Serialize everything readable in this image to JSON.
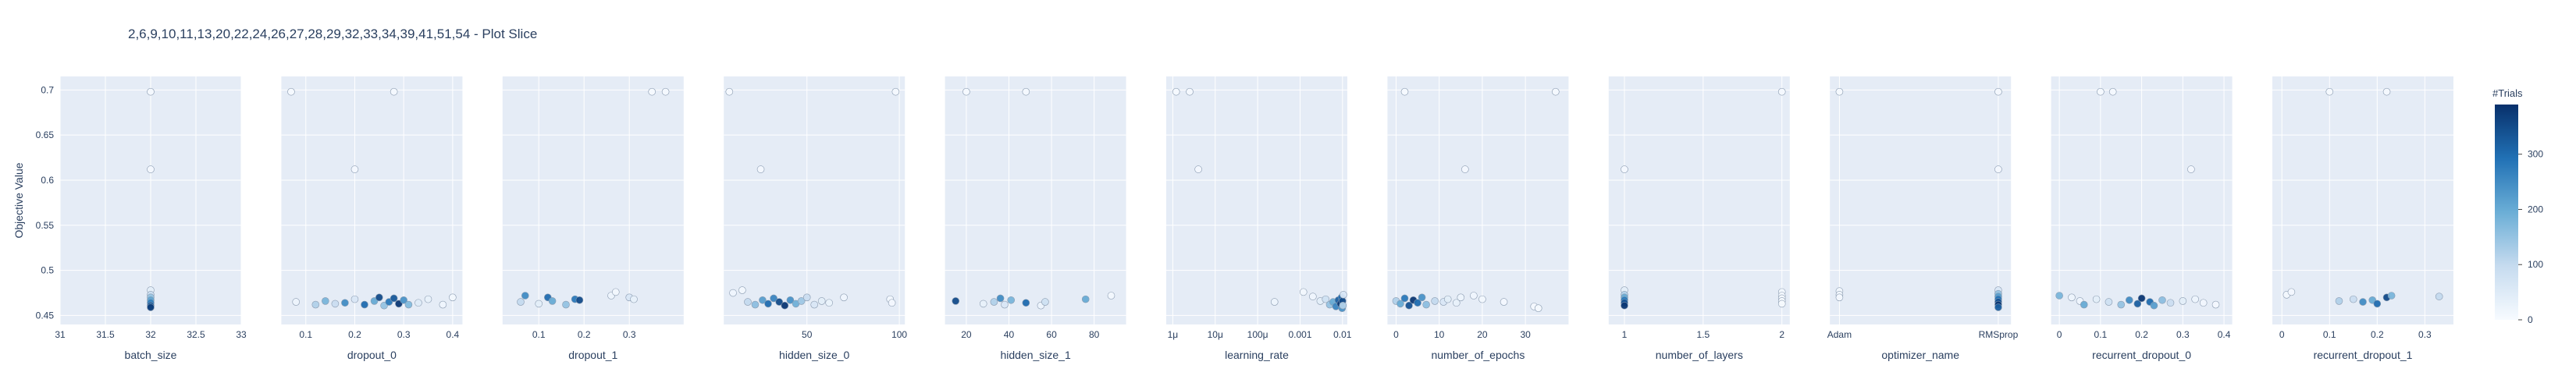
{
  "chart_data": {
    "type": "scatter",
    "title": "2,6,9,10,11,13,20,22,24,26,27,28,29,32,33,34,39,41,51,54 - Plot Slice",
    "ylabel": "Objective Value",
    "ylim": [
      0.44,
      0.715
    ],
    "yticks": [
      0.45,
      0.5,
      0.55,
      0.6,
      0.65,
      0.7
    ],
    "yticklabels": [
      "0.45",
      "0.5",
      "0.55",
      "0.6",
      "0.65",
      "0.7"
    ],
    "colorbar": {
      "title": "#Trials",
      "range": [
        0,
        390
      ],
      "ticks": [
        0,
        100,
        200,
        300
      ],
      "ticklabels": [
        "0",
        "100",
        "200",
        "300"
      ],
      "colors": [
        "#f7fbff",
        "#c6dbef",
        "#6baed6",
        "#2171b5",
        "#08306b"
      ]
    },
    "panels": [
      {
        "xlabel": "batch_size",
        "scale": "linear",
        "xlim": [
          31,
          33
        ],
        "ticks": [
          31,
          31.5,
          32,
          32.5,
          33
        ],
        "ticklabels": [
          "31",
          "31.5",
          "32",
          "32.5",
          "33"
        ],
        "points": [
          [
            32,
            0.698,
            5
          ],
          [
            32,
            0.612,
            8
          ],
          [
            32,
            0.478,
            40
          ],
          [
            32,
            0.473,
            90
          ],
          [
            32,
            0.47,
            150
          ],
          [
            32,
            0.467,
            210
          ],
          [
            32,
            0.464,
            270
          ],
          [
            32,
            0.461,
            330
          ],
          [
            32,
            0.459,
            370
          ]
        ]
      },
      {
        "xlabel": "dropout_0",
        "scale": "linear",
        "xlim": [
          0.05,
          0.42
        ],
        "ticks": [
          0.1,
          0.2,
          0.3,
          0.4
        ],
        "ticklabels": [
          "0.1",
          "0.2",
          "0.3",
          "0.4"
        ],
        "points": [
          [
            0.07,
            0.698,
            3
          ],
          [
            0.28,
            0.698,
            5
          ],
          [
            0.2,
            0.612,
            8
          ],
          [
            0.08,
            0.465,
            20
          ],
          [
            0.12,
            0.462,
            120
          ],
          [
            0.14,
            0.466,
            180
          ],
          [
            0.16,
            0.463,
            90
          ],
          [
            0.18,
            0.464,
            250
          ],
          [
            0.2,
            0.468,
            60
          ],
          [
            0.22,
            0.462,
            300
          ],
          [
            0.24,
            0.466,
            200
          ],
          [
            0.25,
            0.47,
            350
          ],
          [
            0.26,
            0.461,
            150
          ],
          [
            0.27,
            0.465,
            280
          ],
          [
            0.28,
            0.469,
            330
          ],
          [
            0.29,
            0.463,
            380
          ],
          [
            0.3,
            0.467,
            240
          ],
          [
            0.31,
            0.462,
            170
          ],
          [
            0.33,
            0.464,
            50
          ],
          [
            0.35,
            0.468,
            30
          ],
          [
            0.38,
            0.462,
            15
          ],
          [
            0.4,
            0.47,
            10
          ]
        ]
      },
      {
        "xlabel": "dropout_1",
        "scale": "linear",
        "xlim": [
          0.02,
          0.42
        ],
        "ticks": [
          0.1,
          0.2,
          0.3
        ],
        "ticklabels": [
          "0.1",
          "0.2",
          "0.3"
        ],
        "points": [
          [
            0.35,
            0.698,
            3
          ],
          [
            0.38,
            0.698,
            5
          ],
          [
            0.06,
            0.465,
            100
          ],
          [
            0.07,
            0.472,
            250
          ],
          [
            0.1,
            0.463,
            40
          ],
          [
            0.12,
            0.47,
            300
          ],
          [
            0.13,
            0.466,
            200
          ],
          [
            0.16,
            0.462,
            150
          ],
          [
            0.18,
            0.468,
            280
          ],
          [
            0.19,
            0.467,
            350
          ],
          [
            0.26,
            0.472,
            20
          ],
          [
            0.27,
            0.476,
            10
          ],
          [
            0.3,
            0.47,
            60
          ],
          [
            0.31,
            0.468,
            30
          ]
        ]
      },
      {
        "xlabel": "hidden_size_0",
        "scale": "linear",
        "xlim": [
          5,
          103
        ],
        "ticks": [
          50,
          100
        ],
        "ticklabels": [
          "50",
          "100"
        ],
        "points": [
          [
            8,
            0.698,
            3
          ],
          [
            98,
            0.698,
            5
          ],
          [
            25,
            0.612,
            8
          ],
          [
            10,
            0.475,
            15
          ],
          [
            15,
            0.478,
            10
          ],
          [
            18,
            0.465,
            100
          ],
          [
            22,
            0.462,
            160
          ],
          [
            26,
            0.467,
            220
          ],
          [
            29,
            0.463,
            300
          ],
          [
            32,
            0.469,
            260
          ],
          [
            35,
            0.465,
            350
          ],
          [
            38,
            0.461,
            380
          ],
          [
            41,
            0.467,
            240
          ],
          [
            44,
            0.463,
            190
          ],
          [
            47,
            0.466,
            140
          ],
          [
            50,
            0.47,
            90
          ],
          [
            54,
            0.462,
            60
          ],
          [
            58,
            0.466,
            40
          ],
          [
            62,
            0.464,
            25
          ],
          [
            70,
            0.47,
            15
          ],
          [
            95,
            0.468,
            10
          ],
          [
            96,
            0.464,
            8
          ]
        ]
      },
      {
        "xlabel": "hidden_size_1",
        "scale": "linear",
        "xlim": [
          10,
          95
        ],
        "ticks": [
          20,
          40,
          60,
          80
        ],
        "ticklabels": [
          "20",
          "40",
          "60",
          "80"
        ],
        "points": [
          [
            20,
            0.698,
            3
          ],
          [
            48,
            0.698,
            5
          ],
          [
            15,
            0.466,
            350
          ],
          [
            28,
            0.463,
            30
          ],
          [
            33,
            0.465,
            120
          ],
          [
            36,
            0.469,
            250
          ],
          [
            38,
            0.462,
            60
          ],
          [
            41,
            0.467,
            180
          ],
          [
            48,
            0.464,
            300
          ],
          [
            55,
            0.461,
            20
          ],
          [
            57,
            0.465,
            80
          ],
          [
            76,
            0.468,
            200
          ],
          [
            88,
            0.472,
            10
          ]
        ]
      },
      {
        "xlabel": "learning_rate",
        "scale": "log",
        "xlim": [
          7e-07,
          0.013
        ],
        "ticks": [
          1e-06,
          1e-05,
          0.0001,
          0.001,
          0.01
        ],
        "ticklabels": [
          "1μ",
          "10μ",
          "100μ",
          "0.001",
          "0.01"
        ],
        "points": [
          [
            1.2e-06,
            0.698,
            3
          ],
          [
            2.5e-06,
            0.698,
            5
          ],
          [
            4e-06,
            0.612,
            8
          ],
          [
            0.00025,
            0.465,
            20
          ],
          [
            0.0012,
            0.476,
            10
          ],
          [
            0.002,
            0.471,
            15
          ],
          [
            0.003,
            0.466,
            40
          ],
          [
            0.004,
            0.468,
            80
          ],
          [
            0.005,
            0.462,
            150
          ],
          [
            0.006,
            0.465,
            200
          ],
          [
            0.007,
            0.46,
            260
          ],
          [
            0.008,
            0.467,
            320
          ],
          [
            0.009,
            0.463,
            380
          ],
          [
            0.0095,
            0.47,
            300
          ],
          [
            0.0098,
            0.458,
            240
          ],
          [
            0.01,
            0.466,
            350
          ],
          [
            0.0102,
            0.461,
            120
          ],
          [
            0.0105,
            0.473,
            60
          ]
        ]
      },
      {
        "xlabel": "number_of_epochs",
        "scale": "linear",
        "xlim": [
          -2,
          40
        ],
        "ticks": [
          0,
          10,
          20,
          30
        ],
        "ticklabels": [
          "0",
          "10",
          "20",
          "30"
        ],
        "points": [
          [
            2,
            0.698,
            3
          ],
          [
            37,
            0.698,
            5
          ],
          [
            16,
            0.612,
            8
          ],
          [
            0,
            0.466,
            120
          ],
          [
            1,
            0.463,
            200
          ],
          [
            2,
            0.469,
            280
          ],
          [
            3,
            0.461,
            340
          ],
          [
            4,
            0.467,
            380
          ],
          [
            5,
            0.464,
            300
          ],
          [
            6,
            0.47,
            240
          ],
          [
            7,
            0.462,
            160
          ],
          [
            9,
            0.466,
            100
          ],
          [
            11,
            0.465,
            60
          ],
          [
            12,
            0.468,
            40
          ],
          [
            14,
            0.464,
            30
          ],
          [
            15,
            0.47,
            20
          ],
          [
            18,
            0.472,
            15
          ],
          [
            20,
            0.468,
            10
          ],
          [
            25,
            0.465,
            8
          ],
          [
            32,
            0.46,
            5
          ],
          [
            33,
            0.458,
            4
          ]
        ]
      },
      {
        "xlabel": "number_of_layers",
        "scale": "linear",
        "xlim": [
          0.9,
          2.05
        ],
        "ticks": [
          1,
          1.5,
          2
        ],
        "ticklabels": [
          "1",
          "1.5",
          "2"
        ],
        "points": [
          [
            1,
            0.612,
            8
          ],
          [
            2,
            0.698,
            5
          ],
          [
            1,
            0.478,
            40
          ],
          [
            1,
            0.473,
            120
          ],
          [
            1,
            0.47,
            200
          ],
          [
            1,
            0.467,
            280
          ],
          [
            1,
            0.464,
            340
          ],
          [
            1,
            0.461,
            380
          ],
          [
            2,
            0.476,
            10
          ],
          [
            2,
            0.472,
            8
          ],
          [
            2,
            0.469,
            6
          ],
          [
            2,
            0.466,
            5
          ],
          [
            2,
            0.463,
            4
          ]
        ]
      },
      {
        "xlabel": "optimizer_name",
        "scale": "category",
        "xlim": [
          -0.06,
          1.08
        ],
        "ticks": [
          0,
          1
        ],
        "ticklabels": [
          "Adam",
          "RMSprop"
        ],
        "points": [
          [
            0,
            0.698,
            3
          ],
          [
            1,
            0.698,
            5
          ],
          [
            1,
            0.612,
            8
          ],
          [
            0,
            0.477,
            10
          ],
          [
            0,
            0.473,
            12
          ],
          [
            0,
            0.47,
            8
          ],
          [
            1,
            0.478,
            60
          ],
          [
            1,
            0.474,
            150
          ],
          [
            1,
            0.471,
            220
          ],
          [
            1,
            0.468,
            290
          ],
          [
            1,
            0.465,
            340
          ],
          [
            1,
            0.462,
            380
          ],
          [
            1,
            0.459,
            320
          ]
        ]
      },
      {
        "xlabel": "recurrent_dropout_0",
        "scale": "linear",
        "xlim": [
          -0.02,
          0.42
        ],
        "ticks": [
          0,
          0.1,
          0.2,
          0.3,
          0.4
        ],
        "ticklabels": [
          "0",
          "0.1",
          "0.2",
          "0.3",
          "0.4"
        ],
        "points": [
          [
            0.1,
            0.698,
            3
          ],
          [
            0.13,
            0.698,
            5
          ],
          [
            0.32,
            0.612,
            8
          ],
          [
            0,
            0.472,
            180
          ],
          [
            0.03,
            0.47,
            20
          ],
          [
            0.05,
            0.466,
            15
          ],
          [
            0.06,
            0.462,
            200
          ],
          [
            0.09,
            0.468,
            40
          ],
          [
            0.12,
            0.465,
            80
          ],
          [
            0.15,
            0.462,
            150
          ],
          [
            0.17,
            0.467,
            250
          ],
          [
            0.19,
            0.463,
            320
          ],
          [
            0.2,
            0.469,
            380
          ],
          [
            0.22,
            0.465,
            300
          ],
          [
            0.23,
            0.461,
            220
          ],
          [
            0.25,
            0.467,
            160
          ],
          [
            0.27,
            0.464,
            90
          ],
          [
            0.3,
            0.466,
            40
          ],
          [
            0.33,
            0.468,
            20
          ],
          [
            0.35,
            0.464,
            12
          ],
          [
            0.38,
            0.462,
            8
          ]
        ]
      },
      {
        "xlabel": "recurrent_dropout_1",
        "scale": "linear",
        "xlim": [
          -0.02,
          0.36
        ],
        "ticks": [
          0,
          0.1,
          0.2,
          0.3
        ],
        "ticklabels": [
          "0",
          "0.1",
          "0.2",
          "0.3"
        ],
        "points": [
          [
            0.1,
            0.698,
            3
          ],
          [
            0.22,
            0.698,
            5
          ],
          [
            0.01,
            0.473,
            10
          ],
          [
            0.02,
            0.476,
            8
          ],
          [
            0.12,
            0.466,
            120
          ],
          [
            0.15,
            0.468,
            90
          ],
          [
            0.17,
            0.465,
            250
          ],
          [
            0.19,
            0.467,
            200
          ],
          [
            0.2,
            0.463,
            300
          ],
          [
            0.22,
            0.47,
            350
          ],
          [
            0.23,
            0.472,
            180
          ],
          [
            0.33,
            0.471,
            100
          ]
        ]
      }
    ]
  }
}
